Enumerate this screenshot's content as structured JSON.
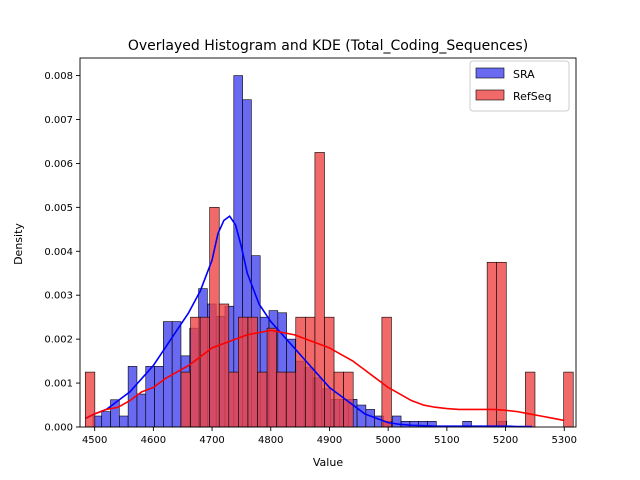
{
  "chart_data": {
    "type": "bar",
    "title": "Overlayed Histogram and KDE (Total_Coding_Sequences)",
    "xlabel": "Value",
    "ylabel": "Density",
    "xlim": [
      4475,
      5320
    ],
    "ylim": [
      0,
      0.0084
    ],
    "xticks": [
      4500,
      4600,
      4700,
      4800,
      4900,
      5000,
      5100,
      5200,
      5300
    ],
    "yticks": [
      0.0,
      0.001,
      0.002,
      0.003,
      0.004,
      0.005,
      0.006,
      0.007,
      0.008
    ],
    "ytick_labels": [
      "0.000",
      "0.001",
      "0.002",
      "0.003",
      "0.004",
      "0.005",
      "0.006",
      "0.007",
      "0.008"
    ],
    "legend_position": "top-right",
    "series": [
      {
        "name": "SRA",
        "color": "#0000ff",
        "bar_color": "#4444ee",
        "bin_start": 4497,
        "bin_width": 15,
        "values": [
          0.00025,
          0.00035,
          0.00062,
          0.00025,
          0.00138,
          0.00075,
          0.00138,
          0.00138,
          0.0024,
          0.0024,
          0.00162,
          0.00225,
          0.00315,
          0.0028,
          0.00252,
          0.00275,
          0.008,
          0.00745,
          0.0039,
          0.0025,
          0.00265,
          0.0026,
          0.002,
          0.0015,
          0.00135,
          0.00112,
          0.00087,
          0.00063,
          0.00063,
          0.00063,
          0.0005,
          0.0004,
          0.00025,
          0.00013,
          0.00025,
          0.00013,
          0.00013,
          0.00013,
          0.00013,
          0.0,
          0.0,
          0.0,
          0.00013,
          0.0,
          0.0,
          0.0,
          0.00013
        ],
        "kde": {
          "x": [
            4485,
            4500,
            4520,
            4540,
            4560,
            4580,
            4600,
            4620,
            4640,
            4660,
            4680,
            4700,
            4710,
            4720,
            4730,
            4740,
            4750,
            4760,
            4780,
            4800,
            4820,
            4840,
            4860,
            4880,
            4900,
            4920,
            4940,
            4960,
            4980,
            5000,
            5020,
            5040,
            5060,
            5080,
            5100,
            5120,
            5140,
            5160,
            5180,
            5200,
            5220,
            5245
          ],
          "y": [
            0.0002,
            0.0003,
            0.0004,
            0.0006,
            0.0008,
            0.0011,
            0.0014,
            0.0018,
            0.0022,
            0.0026,
            0.0031,
            0.0038,
            0.0044,
            0.0047,
            0.0048,
            0.0046,
            0.0041,
            0.0035,
            0.0028,
            0.0024,
            0.0021,
            0.0018,
            0.0015,
            0.0012,
            0.0009,
            0.0007,
            0.0005,
            0.0003,
            0.0002,
            0.0001,
            6e-05,
            4e-05,
            3e-05,
            2e-05,
            2e-05,
            2e-05,
            2e-05,
            2e-05,
            2e-05,
            2e-05,
            1e-05,
            1e-05
          ]
        }
      },
      {
        "name": "RefSeq",
        "color": "#ff0000",
        "bar_color": "#ee4444",
        "bin_start": 4484,
        "bin_width": 16.3,
        "values": [
          0.00125,
          0,
          0,
          0,
          0,
          0,
          0,
          0,
          0,
          0,
          0.00125,
          0.0025,
          0.0025,
          0.005,
          0.0028,
          0.00125,
          0.0025,
          0.0025,
          0.00125,
          0.00225,
          0.00125,
          0.00125,
          0.0025,
          0.0025,
          0.00625,
          0.0025,
          0.00125,
          0.00125,
          0,
          0,
          0,
          0.0025,
          0,
          0,
          0,
          0,
          0,
          0,
          0,
          0,
          0,
          0,
          0.00375,
          0.00375,
          0,
          0,
          0.00125,
          0,
          0,
          0,
          0.00125
        ],
        "kde": {
          "x": [
            4485,
            4500,
            4520,
            4540,
            4560,
            4580,
            4600,
            4620,
            4640,
            4660,
            4680,
            4700,
            4720,
            4740,
            4760,
            4780,
            4800,
            4820,
            4840,
            4860,
            4880,
            4900,
            4920,
            4940,
            4960,
            4980,
            5000,
            5020,
            5040,
            5060,
            5080,
            5100,
            5120,
            5140,
            5160,
            5180,
            5200,
            5220,
            5240,
            5260,
            5280,
            5300
          ],
          "y": [
            0.0002,
            0.0003,
            0.0004,
            0.00045,
            0.0006,
            0.0008,
            0.0009,
            0.0011,
            0.00125,
            0.0014,
            0.0016,
            0.0018,
            0.0019,
            0.002,
            0.0021,
            0.00215,
            0.0022,
            0.00215,
            0.0021,
            0.002,
            0.0019,
            0.0018,
            0.00165,
            0.0015,
            0.0013,
            0.0011,
            0.0009,
            0.00075,
            0.0006,
            0.0005,
            0.00045,
            0.00042,
            0.0004,
            0.0004,
            0.0004,
            0.0004,
            0.00038,
            0.00035,
            0.0003,
            0.00025,
            0.0002,
            0.00015
          ]
        }
      }
    ]
  }
}
